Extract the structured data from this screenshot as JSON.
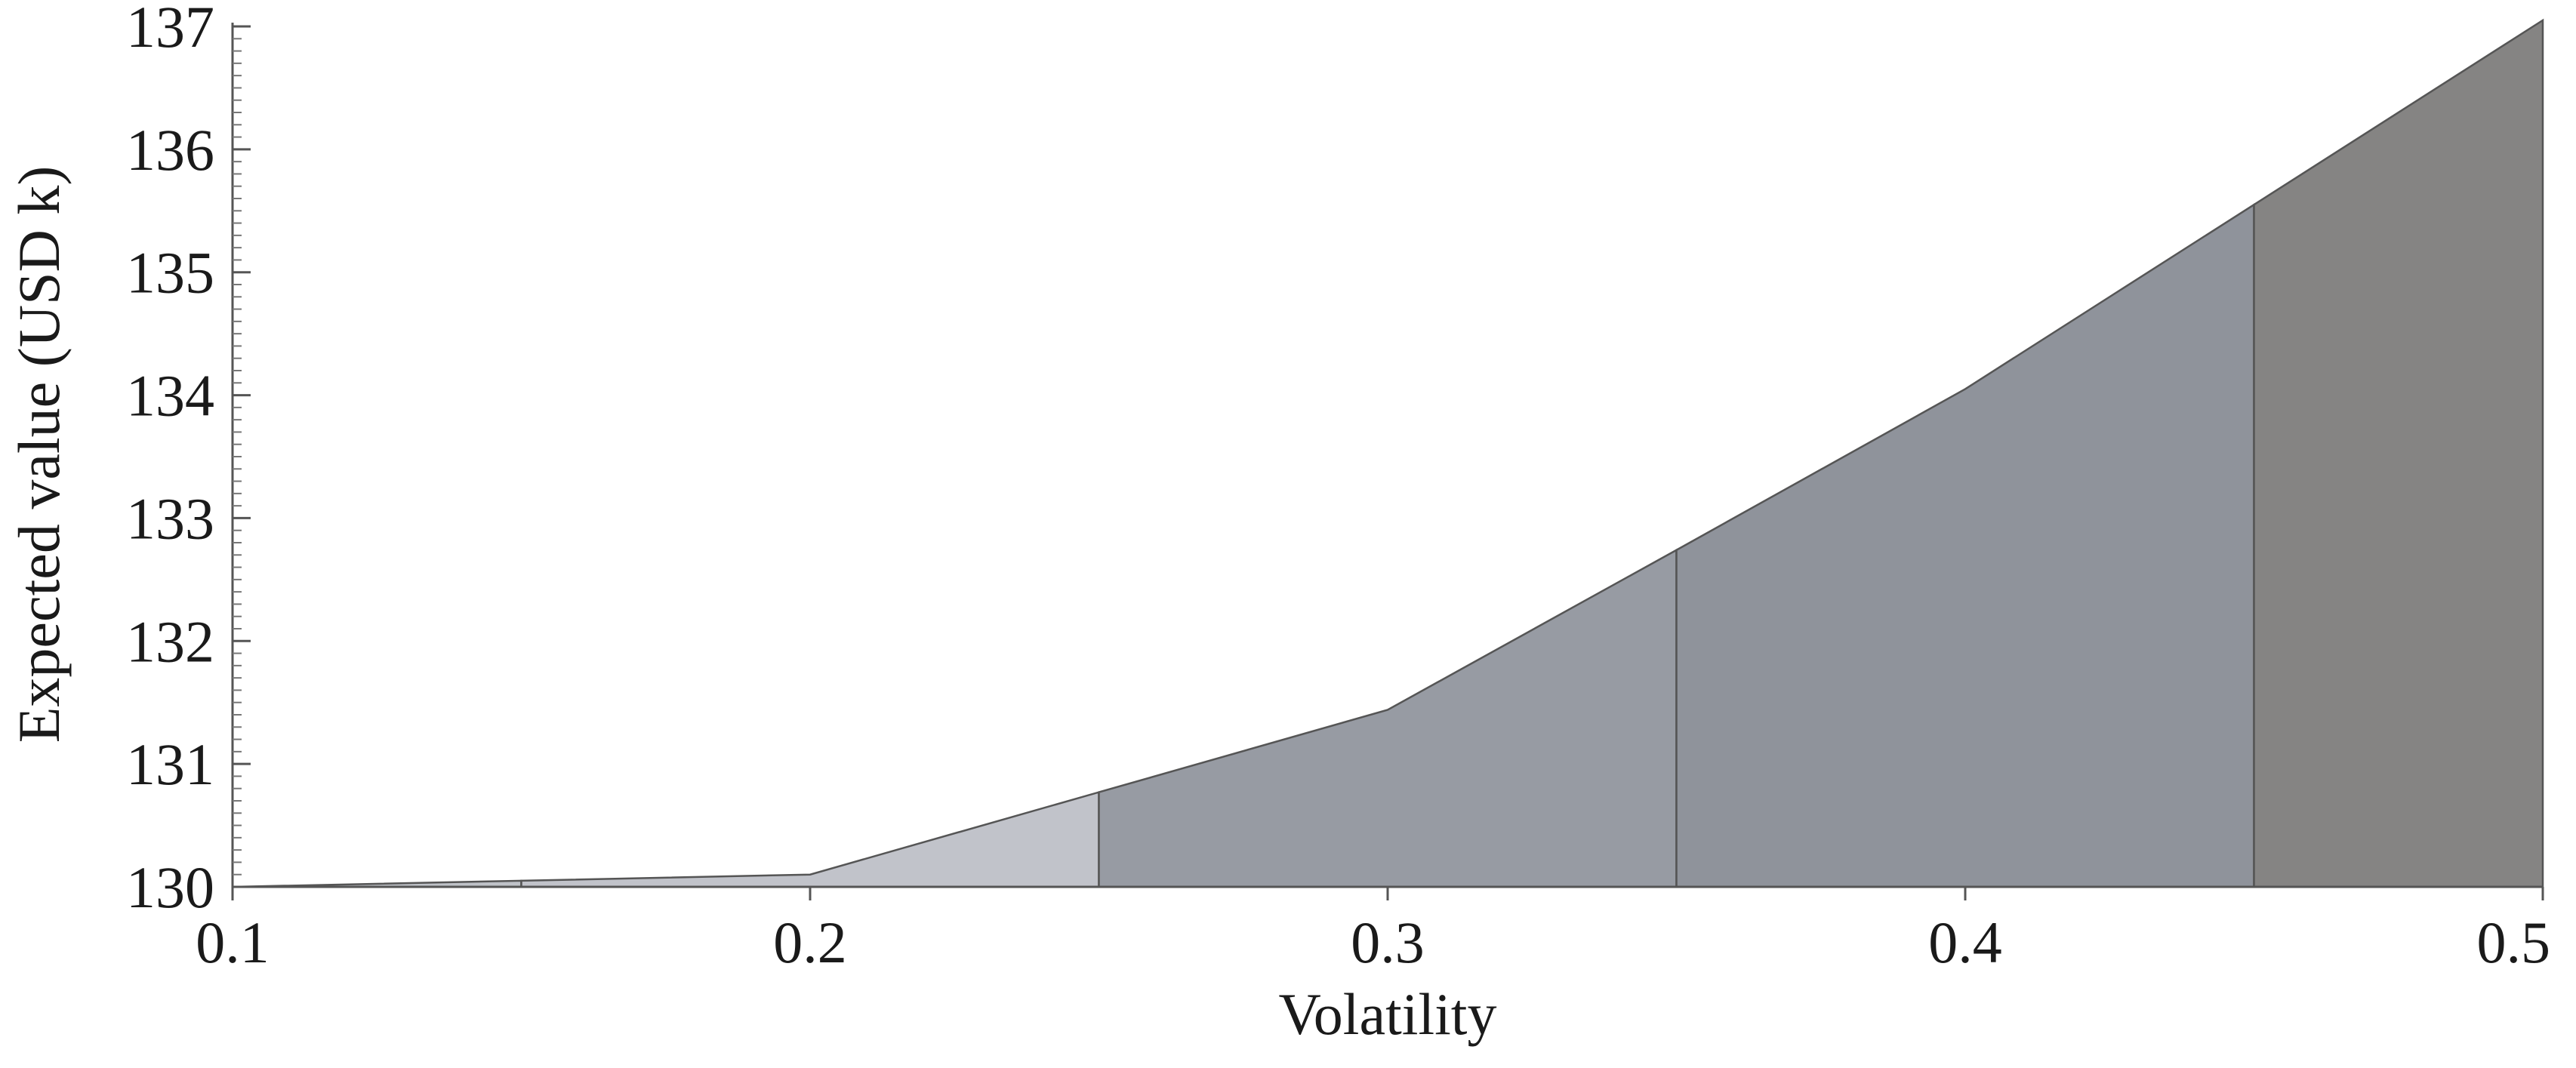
{
  "chart_data": {
    "type": "area",
    "xlabel": "Volatility",
    "ylabel": "Expected value (USD k)",
    "xlim": [
      0.1,
      0.5
    ],
    "ylim": [
      130,
      137
    ],
    "x_ticks": [
      "0.1",
      "0.2",
      "0.3",
      "0.4",
      "0.5"
    ],
    "y_ticks": [
      "130",
      "131",
      "132",
      "133",
      "134",
      "135",
      "136",
      "137"
    ],
    "grid": false,
    "legend": "none",
    "x": [
      0.1,
      0.15,
      0.2,
      0.25,
      0.3,
      0.35,
      0.4,
      0.45,
      0.5
    ],
    "y": [
      130.0,
      130.05,
      130.1,
      130.77,
      131.44,
      132.74,
      134.05,
      135.55,
      137.05
    ],
    "segments": [
      {
        "x_start": 0.1,
        "x_end": 0.15,
        "color": "#bfc2c8"
      },
      {
        "x_start": 0.15,
        "x_end": 0.25,
        "color": "#c1c3ca"
      },
      {
        "x_start": 0.25,
        "x_end": 0.35,
        "color": "#979ba3"
      },
      {
        "x_start": 0.35,
        "x_end": 0.45,
        "color": "#8f939b"
      },
      {
        "x_start": 0.45,
        "x_end": 0.5,
        "color": "#858483"
      }
    ]
  }
}
